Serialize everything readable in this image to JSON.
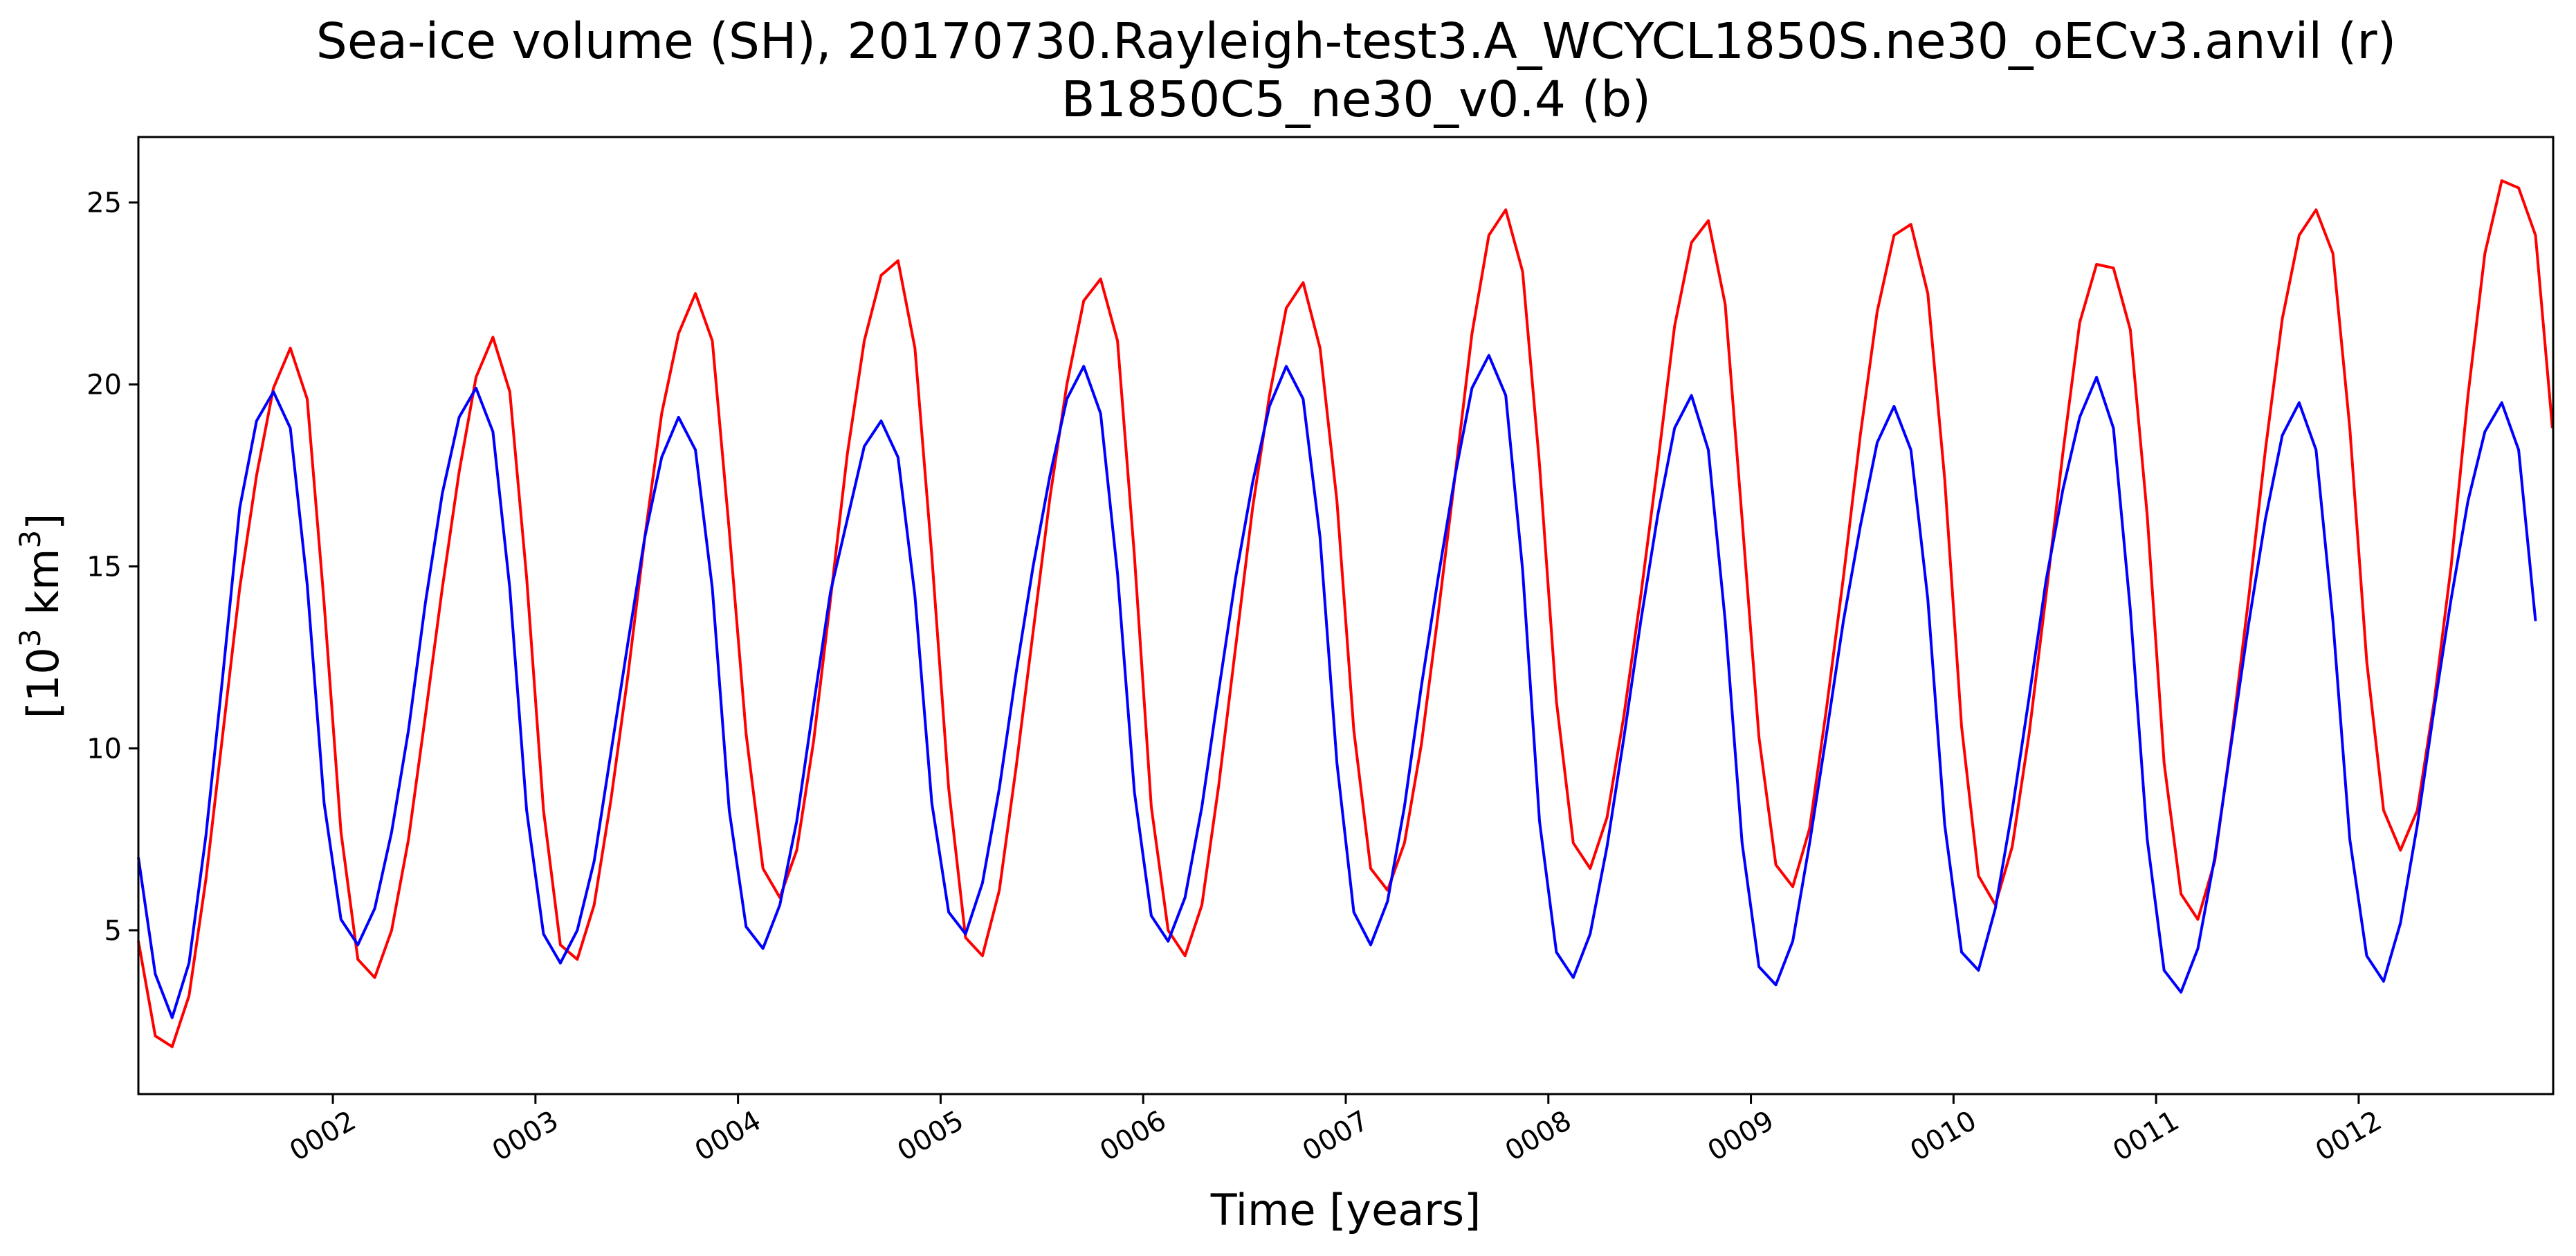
{
  "chart_data": {
    "type": "line",
    "title_lines": [
      "Sea-ice volume (SH), 20170730.Rayleigh-test3.A_WCYCL1850S.ne30_oECv3.anvil (r)",
      "B1850C5_ne30_v0.4 (b)"
    ],
    "xlabel": "Time [years]",
    "ylabel": {
      "prefix": "[10",
      "sup1": "3",
      "mid": " km",
      "sup2": "3",
      "suffix": "]"
    },
    "xlim": [
      1.04,
      12.96
    ],
    "ylim": [
      0.5,
      26.8
    ],
    "x_ticks": [
      {
        "value": 2,
        "label": "0002"
      },
      {
        "value": 3,
        "label": "0003"
      },
      {
        "value": 4,
        "label": "0004"
      },
      {
        "value": 5,
        "label": "0005"
      },
      {
        "value": 6,
        "label": "0006"
      },
      {
        "value": 7,
        "label": "0007"
      },
      {
        "value": 8,
        "label": "0008"
      },
      {
        "value": 9,
        "label": "0009"
      },
      {
        "value": 10,
        "label": "0010"
      },
      {
        "value": 11,
        "label": "0011"
      },
      {
        "value": 12,
        "label": "0012"
      }
    ],
    "y_ticks": [
      {
        "value": 5,
        "label": "5"
      },
      {
        "value": 10,
        "label": "10"
      },
      {
        "value": 15,
        "label": "15"
      },
      {
        "value": 20,
        "label": "20"
      },
      {
        "value": 25,
        "label": "25"
      }
    ],
    "grid": false,
    "legend": "none",
    "x_start": 1.04,
    "x_step": 0.08333,
    "series": [
      {
        "color": "#ff0000",
        "values": [
          4.7,
          2.1,
          1.8,
          3.2,
          6.4,
          10.4,
          14.4,
          17.5,
          19.9,
          21.0,
          19.6,
          14.0,
          7.7,
          4.2,
          3.7,
          5.0,
          7.5,
          10.9,
          14.4,
          17.6,
          20.2,
          21.3,
          19.8,
          14.7,
          8.3,
          4.6,
          4.2,
          5.7,
          8.6,
          12.0,
          15.8,
          19.2,
          21.4,
          22.5,
          21.2,
          16.0,
          10.4,
          6.7,
          5.9,
          7.2,
          10.2,
          14.1,
          18.1,
          21.2,
          23.0,
          23.4,
          21.0,
          15.3,
          8.9,
          4.8,
          4.3,
          6.1,
          9.5,
          13.2,
          16.9,
          20.0,
          22.3,
          22.9,
          21.2,
          15.3,
          8.4,
          5.0,
          4.3,
          5.7,
          9.0,
          12.8,
          16.6,
          19.7,
          22.1,
          22.8,
          21.0,
          16.8,
          10.5,
          6.7,
          6.1,
          7.4,
          10.1,
          13.7,
          17.5,
          21.4,
          24.1,
          24.8,
          23.1,
          17.8,
          11.3,
          7.4,
          6.7,
          8.1,
          10.9,
          14.2,
          17.8,
          21.6,
          23.9,
          24.5,
          22.2,
          16.3,
          10.3,
          6.8,
          6.2,
          7.8,
          11.1,
          14.7,
          18.6,
          22.0,
          24.1,
          24.4,
          22.5,
          17.4,
          10.6,
          6.5,
          5.7,
          7.3,
          10.4,
          14.2,
          18.1,
          21.7,
          23.3,
          23.2,
          21.5,
          16.4,
          9.6,
          6.0,
          5.3,
          6.9,
          10.3,
          14.1,
          18.2,
          21.8,
          24.1,
          24.8,
          23.6,
          18.8,
          12.4,
          8.3,
          7.2,
          8.3,
          11.3,
          15.0,
          19.7,
          23.6,
          25.6,
          25.4,
          24.1,
          18.8
        ]
      },
      {
        "color": "#0000ff",
        "values": [
          7.0,
          3.8,
          2.6,
          4.1,
          7.6,
          12.0,
          16.6,
          19.0,
          19.8,
          18.8,
          14.5,
          8.5,
          5.3,
          4.6,
          5.6,
          7.7,
          10.5,
          14.0,
          17.0,
          19.1,
          19.9,
          18.7,
          14.4,
          8.3,
          4.9,
          4.1,
          5.0,
          6.9,
          9.9,
          12.9,
          15.8,
          18.0,
          19.1,
          18.2,
          14.4,
          8.3,
          5.1,
          4.5,
          5.7,
          8.0,
          11.2,
          14.3,
          16.3,
          18.3,
          19.0,
          18.0,
          14.2,
          8.5,
          5.5,
          4.9,
          6.3,
          8.9,
          12.1,
          15.0,
          17.5,
          19.6,
          20.5,
          19.2,
          14.8,
          8.8,
          5.4,
          4.7,
          5.9,
          8.4,
          11.6,
          14.7,
          17.3,
          19.4,
          20.5,
          19.6,
          15.8,
          9.6,
          5.5,
          4.6,
          5.8,
          8.4,
          11.7,
          14.7,
          17.5,
          19.9,
          20.8,
          19.7,
          14.9,
          8.0,
          4.4,
          3.7,
          4.9,
          7.3,
          10.3,
          13.5,
          16.4,
          18.8,
          19.7,
          18.2,
          13.5,
          7.4,
          4.0,
          3.5,
          4.7,
          7.4,
          10.4,
          13.5,
          16.1,
          18.4,
          19.4,
          18.2,
          14.1,
          7.9,
          4.4,
          3.9,
          5.6,
          8.3,
          11.4,
          14.6,
          17.1,
          19.1,
          20.2,
          18.8,
          13.8,
          7.5,
          3.9,
          3.3,
          4.5,
          7.0,
          10.2,
          13.4,
          16.3,
          18.6,
          19.5,
          18.2,
          13.5,
          7.5,
          4.3,
          3.6,
          5.2,
          7.9,
          11.1,
          14.1,
          16.8,
          18.7,
          19.5,
          18.2,
          13.5
        ]
      }
    ]
  }
}
